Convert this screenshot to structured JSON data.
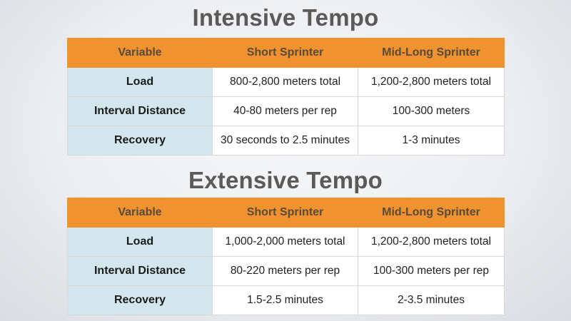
{
  "colors": {
    "header_bg": "#f0922f",
    "row_label_bg": "#d3e6ee",
    "cell_bg": "#ffffff",
    "title_text": "#5a5a5a"
  },
  "sections": [
    {
      "title": "Intensive Tempo",
      "headers": [
        "Variable",
        "Short Sprinter",
        "Mid-Long Sprinter"
      ],
      "rows": [
        {
          "variable": "Load",
          "short": "800-2,800 meters total",
          "midlong": "1,200-2,800 meters total"
        },
        {
          "variable": "Interval Distance",
          "short": "40-80 meters per rep",
          "midlong": "100-300 meters"
        },
        {
          "variable": "Recovery",
          "short": "30 seconds to 2.5 minutes",
          "midlong": "1-3 minutes"
        }
      ]
    },
    {
      "title": "Extensive Tempo",
      "headers": [
        "Variable",
        "Short Sprinter",
        "Mid-Long Sprinter"
      ],
      "rows": [
        {
          "variable": "Load",
          "short": "1,000-2,000 meters total",
          "midlong": "1,200-2,800 meters total"
        },
        {
          "variable": "Interval Distance",
          "short": "80-220 meters per rep",
          "midlong": "100-300 meters per rep"
        },
        {
          "variable": "Recovery",
          "short": "1.5-2.5 minutes",
          "midlong": "2-3.5 minutes"
        }
      ]
    }
  ]
}
